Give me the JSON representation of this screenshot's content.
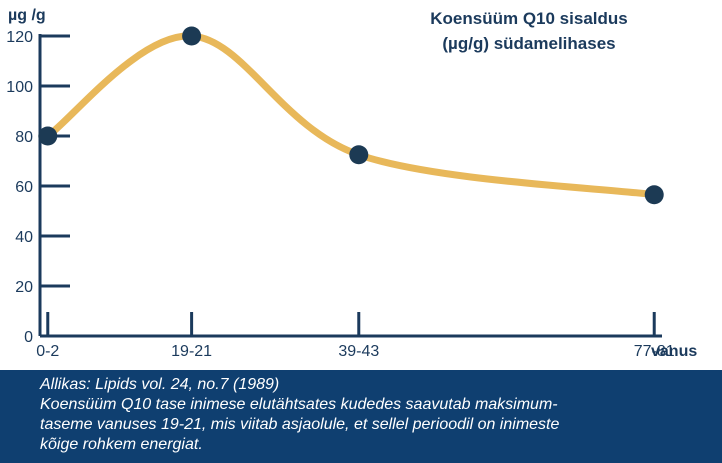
{
  "colors": {
    "navy": "#1b3a5c",
    "curve": "#e8b85a",
    "point": "#1c3a54",
    "footer_bg": "#0f3f70",
    "footer_text": "#ffffff"
  },
  "chart_data": {
    "type": "line",
    "title_lines": [
      "Koensüüm Q10 sisaldus",
      "(µg/g) südamelihases"
    ],
    "xlabel": "vanus",
    "ylabel": "µg /g",
    "categories": [
      "0-2",
      "19-21",
      "39-43",
      "77-81"
    ],
    "x": [
      1,
      19.5,
      41,
      79
    ],
    "y_ticks": [
      0,
      20,
      40,
      60,
      80,
      100,
      120
    ],
    "ylim": [
      0,
      120
    ],
    "series": [
      {
        "values": [
          80,
          120,
          72.5,
          56.5
        ]
      }
    ],
    "grid": false,
    "legend": "none"
  },
  "footer": {
    "source": "Allikas: Lipids vol. 24, no.7 (1989)",
    "line1": "Koensüüm Q10 tase inimese elutähtsates kudedes saavutab maksimum-",
    "line2": "taseme vanuses 19-21, mis viitab asjaolule, et sellel perioodil on inimeste",
    "line3": "kõige rohkem energiat."
  }
}
